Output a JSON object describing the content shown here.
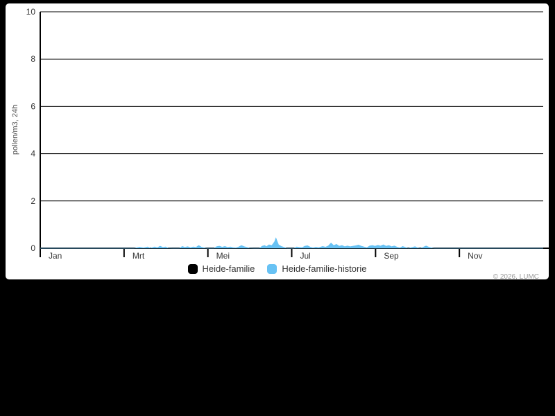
{
  "page": {
    "background_color": "#000000",
    "card_color": "#ffffff",
    "axis_color": "#000000",
    "label_color": "#333333",
    "credit_color": "#999999"
  },
  "chart_data": {
    "type": "area",
    "title": "",
    "ylabel": "pollen/m3, 24h",
    "xlabel": "",
    "ylim": [
      0,
      10
    ],
    "yticks": [
      0,
      2,
      4,
      6,
      8,
      10
    ],
    "x_unit": "day_of_year",
    "xlim": [
      0,
      365
    ],
    "xticks": [
      {
        "month_index": 0,
        "label": "Jan"
      },
      {
        "month_index": 2,
        "label": "Mrt"
      },
      {
        "month_index": 4,
        "label": "Mei"
      },
      {
        "month_index": 6,
        "label": "Jul"
      },
      {
        "month_index": 8,
        "label": "Sep"
      },
      {
        "month_index": 10,
        "label": "Nov"
      }
    ],
    "grid": true,
    "legend_position": "bottom-center",
    "credit": "© 2026, LUMC",
    "series": [
      {
        "name": "Heide-familie",
        "color": "#000000",
        "points": [
          [
            0,
            0
          ],
          [
            365,
            0
          ]
        ]
      },
      {
        "name": "Heide-familie-historie",
        "color": "#68C2F4",
        "points": [
          [
            0,
            0
          ],
          [
            68,
            0
          ],
          [
            72,
            0.05
          ],
          [
            75,
            0.02
          ],
          [
            78,
            0.06
          ],
          [
            80,
            0.01
          ],
          [
            83,
            0.06
          ],
          [
            85,
            0.03
          ],
          [
            87,
            0.09
          ],
          [
            89,
            0.04
          ],
          [
            91,
            0.06
          ],
          [
            93,
            0.01
          ],
          [
            96,
            0
          ],
          [
            101,
            0
          ],
          [
            103,
            0.08
          ],
          [
            105,
            0.04
          ],
          [
            107,
            0.07
          ],
          [
            109,
            0.03
          ],
          [
            111,
            0.06
          ],
          [
            113,
            0.04
          ],
          [
            115,
            0.12
          ],
          [
            117,
            0.05
          ],
          [
            119,
            0.02
          ],
          [
            121,
            0
          ],
          [
            126,
            0
          ],
          [
            128,
            0.07
          ],
          [
            130,
            0.09
          ],
          [
            132,
            0.05
          ],
          [
            134,
            0.08
          ],
          [
            136,
            0.04
          ],
          [
            138,
            0.06
          ],
          [
            140,
            0.03
          ],
          [
            142,
            0.02
          ],
          [
            144,
            0.06
          ],
          [
            146,
            0.12
          ],
          [
            148,
            0.07
          ],
          [
            150,
            0.04
          ],
          [
            152,
            0.01
          ],
          [
            155,
            0
          ],
          [
            159,
            0
          ],
          [
            161,
            0.09
          ],
          [
            163,
            0.12
          ],
          [
            164,
            0.07
          ],
          [
            166,
            0.15
          ],
          [
            168,
            0.12
          ],
          [
            169,
            0.2
          ],
          [
            170,
            0.28
          ],
          [
            171,
            0.45
          ],
          [
            172,
            0.3
          ],
          [
            173,
            0.15
          ],
          [
            175,
            0.08
          ],
          [
            177,
            0.04
          ],
          [
            179,
            0
          ],
          [
            184,
            0
          ],
          [
            186,
            0.06
          ],
          [
            188,
            0.04
          ],
          [
            190,
            0.03
          ],
          [
            192,
            0.09
          ],
          [
            194,
            0.11
          ],
          [
            196,
            0.05
          ],
          [
            198,
            0.02
          ],
          [
            200,
            0.05
          ],
          [
            202,
            0.03
          ],
          [
            205,
            0.08
          ],
          [
            207,
            0.05
          ],
          [
            209,
            0.1
          ],
          [
            211,
            0.23
          ],
          [
            213,
            0.12
          ],
          [
            215,
            0.17
          ],
          [
            217,
            0.09
          ],
          [
            219,
            0.12
          ],
          [
            221,
            0.07
          ],
          [
            223,
            0.1
          ],
          [
            225,
            0.07
          ],
          [
            227,
            0.09
          ],
          [
            229,
            0.11
          ],
          [
            231,
            0.14
          ],
          [
            233,
            0.09
          ],
          [
            235,
            0.06
          ],
          [
            237,
            0.03
          ],
          [
            239,
            0.1
          ],
          [
            241,
            0.12
          ],
          [
            243,
            0.09
          ],
          [
            245,
            0.13
          ],
          [
            247,
            0.1
          ],
          [
            249,
            0.15
          ],
          [
            251,
            0.09
          ],
          [
            253,
            0.12
          ],
          [
            255,
            0.07
          ],
          [
            257,
            0.1
          ],
          [
            259,
            0.05
          ],
          [
            261,
            0.02
          ],
          [
            263,
            0.08
          ],
          [
            265,
            0.04
          ],
          [
            267,
            0
          ],
          [
            270,
            0.04
          ],
          [
            272,
            0.07
          ],
          [
            274,
            0.02
          ],
          [
            276,
            0
          ],
          [
            278,
            0.05
          ],
          [
            280,
            0.1
          ],
          [
            282,
            0.05
          ],
          [
            284,
            0.02
          ],
          [
            286,
            0
          ],
          [
            365,
            0
          ]
        ]
      }
    ]
  }
}
